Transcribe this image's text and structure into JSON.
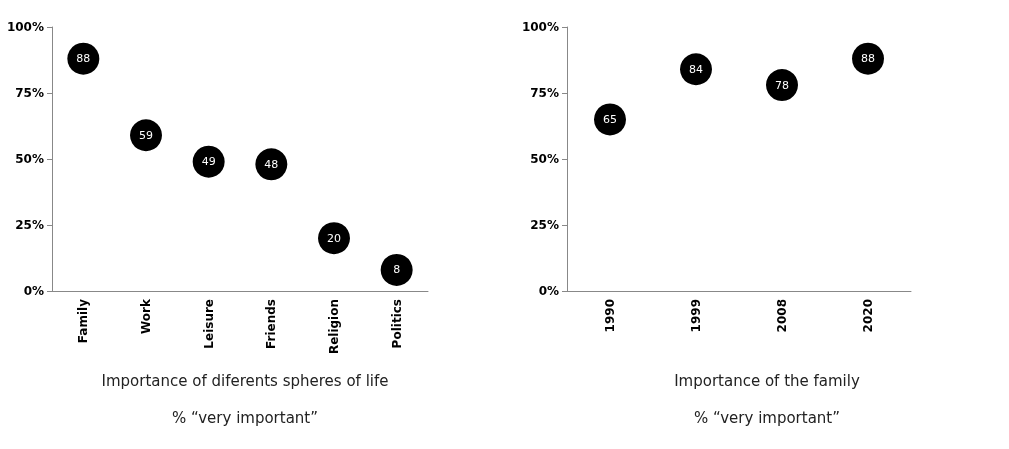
{
  "chart_data": [
    {
      "type": "scatter",
      "title": "Importance of diferents spheres of life",
      "subtitle": "% “very important”",
      "categories": [
        "Family",
        "Work",
        "Leisure",
        "Friends",
        "Religion",
        "Politics"
      ],
      "series": [
        {
          "color": "#000000",
          "values": [
            88,
            59,
            49,
            48,
            20,
            8
          ]
        }
      ],
      "ylim": [
        0,
        100
      ],
      "yticks": [
        {
          "value": 0,
          "label": "0%"
        },
        {
          "value": 25,
          "label": "25%"
        },
        {
          "value": 50,
          "label": "50%"
        },
        {
          "value": 75,
          "label": "75%"
        },
        {
          "value": 100,
          "label": "100%"
        }
      ],
      "grid": false,
      "marker": "circle",
      "data_labels": true
    },
    {
      "type": "scatter",
      "title": "Importance of the family",
      "subtitle": "% “very important”",
      "categories": [
        "1990",
        "1999",
        "2008",
        "2020"
      ],
      "series": [
        {
          "color": "#000000",
          "values": [
            65,
            84,
            78,
            88
          ]
        }
      ],
      "ylim": [
        0,
        100
      ],
      "yticks": [
        {
          "value": 0,
          "label": "0%"
        },
        {
          "value": 25,
          "label": "25%"
        },
        {
          "value": 50,
          "label": "50%"
        },
        {
          "value": 75,
          "label": "75%"
        },
        {
          "value": 100,
          "label": "100%"
        }
      ],
      "grid": false,
      "marker": "circle",
      "data_labels": true
    }
  ]
}
